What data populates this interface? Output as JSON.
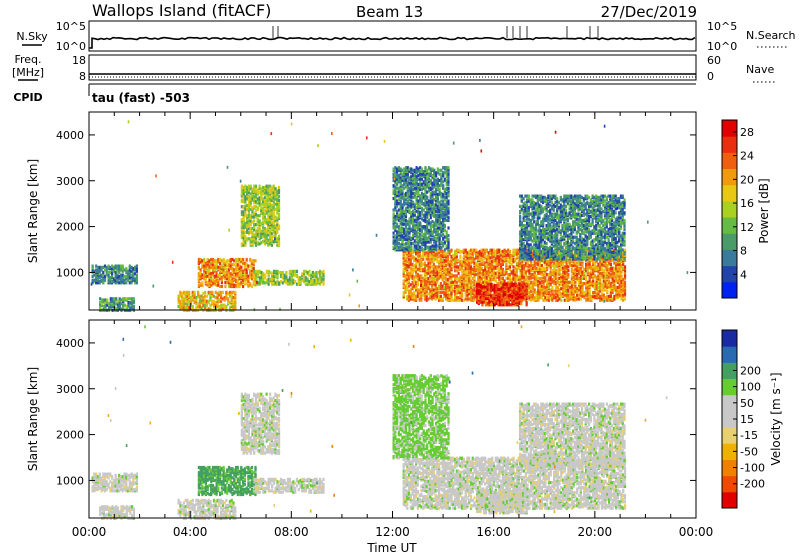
{
  "header": {
    "title": "Wallops Island (fitACF)",
    "beam": "Beam 13",
    "date": "27/Dec/2019",
    "mode": "tau (fast) -503"
  },
  "strips": {
    "nsky_label": "N.Sky",
    "nsearch_label": "N.Search",
    "freq_label_1": "Freq.",
    "freq_label_2": "[MHz]",
    "nave_label": "Nave",
    "cpid_label": "CPID",
    "sky_ticks": [
      "10^5",
      "10^0"
    ],
    "search_ticks": [
      "10^5",
      "10^0"
    ],
    "freq_ticks": [
      "18",
      "8"
    ],
    "nave_ticks": [
      "60",
      "0"
    ]
  },
  "colors": {
    "power": [
      "#0022ee",
      "#2244aa",
      "#3a7a9a",
      "#4a9a6a",
      "#66bb44",
      "#aad022",
      "#e8c814",
      "#f09a10",
      "#ee6010",
      "#e83010",
      "#e00000"
    ],
    "velocity": [
      "#e00000",
      "#f04a00",
      "#f08000",
      "#f0b000",
      "#e8d070",
      "#c8c8c8",
      "#c8c8c8",
      "#66cc33",
      "#44a060",
      "#2a6ab0",
      "#1a2aa0"
    ]
  },
  "chart_data": [
    {
      "type": "heatmap",
      "name": "power",
      "ylabel": "Slant Range [km]",
      "xlabel": "",
      "yticks": [
        "1000",
        "2000",
        "3000",
        "4000"
      ],
      "ylim": [
        180,
        4500
      ],
      "xlim": [
        0,
        24
      ],
      "colorbar_label": "Power [dB]",
      "colorbar_ticks": [
        "4",
        "8",
        "12",
        "16",
        "20",
        "24",
        "28"
      ],
      "colorbar_range": [
        0,
        30
      ],
      "regions": [
        {
          "t0": 0.1,
          "t1": 1.9,
          "r0": 780,
          "r1": 1150,
          "p": 8
        },
        {
          "t0": 0.4,
          "t1": 1.8,
          "r0": 180,
          "r1": 450,
          "p": 10
        },
        {
          "t0": 4.3,
          "t1": 6.6,
          "r0": 700,
          "r1": 1300,
          "p": 21
        },
        {
          "t0": 3.5,
          "t1": 5.8,
          "r0": 180,
          "r1": 600,
          "p": 18
        },
        {
          "t0": 6.0,
          "t1": 7.5,
          "r0": 1600,
          "r1": 2900,
          "p": 14
        },
        {
          "t0": 6.5,
          "t1": 9.3,
          "r0": 750,
          "r1": 1050,
          "p": 14
        },
        {
          "t0": 12.4,
          "t1": 21.2,
          "r0": 400,
          "r1": 1500,
          "p": 21
        },
        {
          "t0": 15.3,
          "t1": 17.3,
          "r0": 300,
          "r1": 750,
          "p": 26
        },
        {
          "t0": 12.0,
          "t1": 14.2,
          "r0": 1500,
          "r1": 3300,
          "p": 8
        },
        {
          "t0": 17.0,
          "t1": 21.2,
          "r0": 1300,
          "r1": 2700,
          "p": 8
        }
      ]
    },
    {
      "type": "heatmap",
      "name": "velocity",
      "ylabel": "Slant Range [km]",
      "xlabel": "Time UT",
      "xticks": [
        "00:00",
        "04:00",
        "08:00",
        "12:00",
        "16:00",
        "20:00",
        "00:00"
      ],
      "yticks": [
        "1000",
        "2000",
        "3000",
        "4000"
      ],
      "ylim": [
        180,
        4500
      ],
      "xlim": [
        0,
        24
      ],
      "colorbar_label": "Velocity [m s⁻¹]",
      "colorbar_ticks": [
        "-200",
        "-100",
        "-50",
        "-15",
        "15",
        "50",
        "100",
        "200"
      ],
      "colorbar_range": [
        -250,
        250
      ],
      "regions": [
        {
          "t0": 0.1,
          "t1": 1.9,
          "r0": 780,
          "r1": 1150,
          "v": 0
        },
        {
          "t0": 0.4,
          "t1": 1.8,
          "r0": 180,
          "r1": 450,
          "v": 0
        },
        {
          "t0": 4.3,
          "t1": 6.6,
          "r0": 700,
          "r1": 1300,
          "v": 60
        },
        {
          "t0": 3.5,
          "t1": 5.8,
          "r0": 180,
          "r1": 600,
          "v": 0
        },
        {
          "t0": 6.0,
          "t1": 7.5,
          "r0": 1600,
          "r1": 2900,
          "v": 0
        },
        {
          "t0": 6.5,
          "t1": 9.3,
          "r0": 750,
          "r1": 1050,
          "v": 0
        },
        {
          "t0": 12.4,
          "t1": 21.2,
          "r0": 400,
          "r1": 1500,
          "v": 0
        },
        {
          "t0": 15.3,
          "t1": 17.3,
          "r0": 300,
          "r1": 750,
          "v": 0
        },
        {
          "t0": 12.0,
          "t1": 14.2,
          "r0": 1500,
          "r1": 3300,
          "v": 25
        },
        {
          "t0": 17.0,
          "t1": 21.2,
          "r0": 1300,
          "r1": 2700,
          "v": 0
        }
      ]
    }
  ]
}
